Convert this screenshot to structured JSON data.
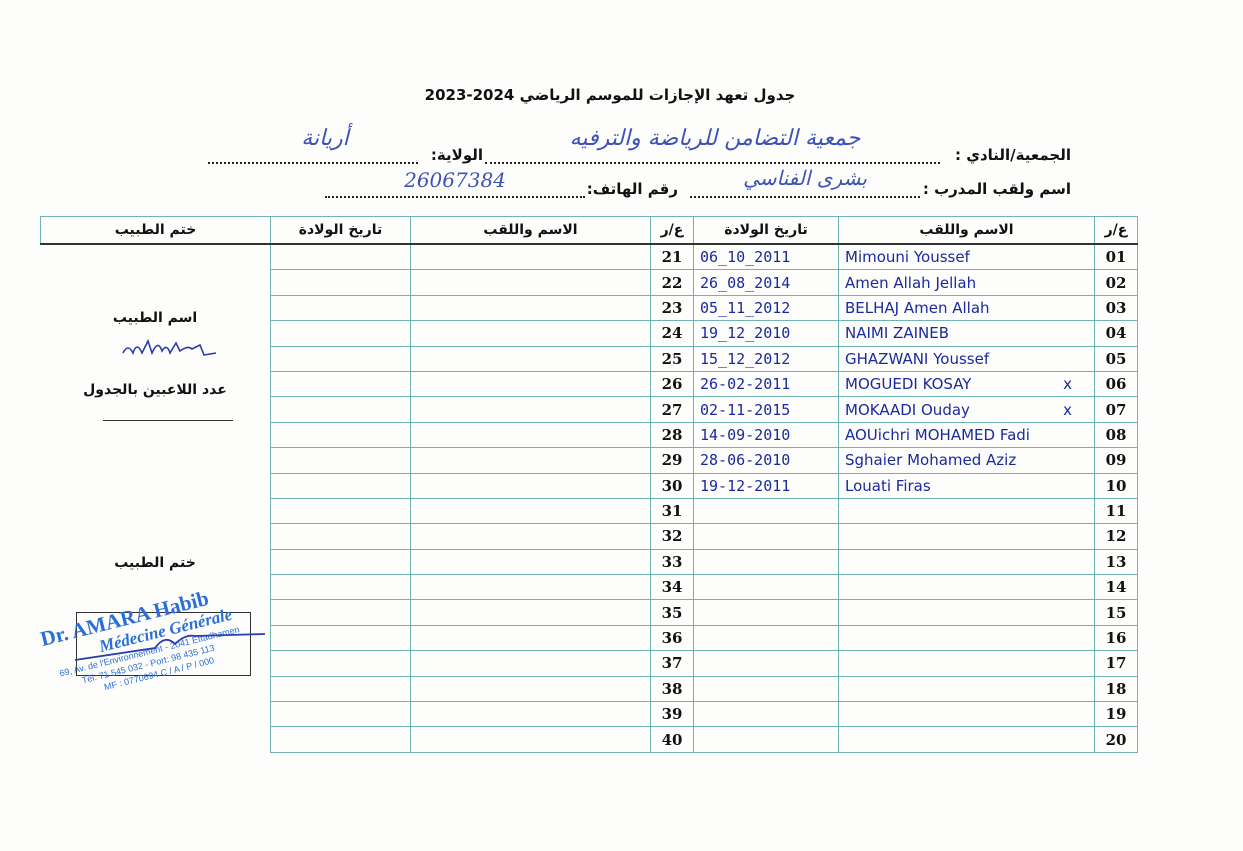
{
  "title": "جدول تعهد الإجازات للموسم الرياضي  2024-2023",
  "fields": {
    "club_label": "الجمعية/النادي :",
    "club_value": "جمعية التضامن للرياضة والترفيه",
    "state_label": "الولاية:",
    "state_value": "أريانة",
    "coach_label": "اسم ولقب المدرب :",
    "coach_value": "بشرى الفناسي",
    "phone_label": "رقم الهاتف:",
    "phone_value": "26067384"
  },
  "table": {
    "headers": {
      "num": "ع/ر",
      "name": "الاسم واللقب",
      "dob": "تاريخ الولادة",
      "stamp": "ختم الطبيب"
    },
    "left_rows": [
      {
        "num": "01",
        "name": "Mimouni Youssef",
        "dob": "06_10_2011",
        "mark": ""
      },
      {
        "num": "02",
        "name": "Amen Allah Jellah",
        "dob": "26_08_2014",
        "mark": ""
      },
      {
        "num": "03",
        "name": "BELHAJ Amen Allah",
        "dob": "05_11_2012",
        "mark": ""
      },
      {
        "num": "04",
        "name": "NAIMI ZAINEB",
        "dob": "19_12_2010",
        "mark": ""
      },
      {
        "num": "05",
        "name": "GHAZWANI Youssef",
        "dob": "15_12_2012",
        "mark": ""
      },
      {
        "num": "06",
        "name": "MOGUEDI KOSAY",
        "dob": "26-02-2011",
        "mark": "x"
      },
      {
        "num": "07",
        "name": "MOKAADI Ouday",
        "dob": "02-11-2015",
        "mark": "x"
      },
      {
        "num": "08",
        "name": "AOUichri MOHAMED Fadi",
        "dob": "14-09-2010",
        "mark": ""
      },
      {
        "num": "09",
        "name": "Sghaier Mohamed Aziz",
        "dob": "28-06-2010",
        "mark": ""
      },
      {
        "num": "10",
        "name": "Louati Firas",
        "dob": "19-12-2011",
        "mark": ""
      },
      {
        "num": "11",
        "name": "",
        "dob": "",
        "mark": ""
      },
      {
        "num": "12",
        "name": "",
        "dob": "",
        "mark": ""
      },
      {
        "num": "13",
        "name": "",
        "dob": "",
        "mark": ""
      },
      {
        "num": "14",
        "name": "",
        "dob": "",
        "mark": ""
      },
      {
        "num": "15",
        "name": "",
        "dob": "",
        "mark": ""
      },
      {
        "num": "16",
        "name": "",
        "dob": "",
        "mark": ""
      },
      {
        "num": "17",
        "name": "",
        "dob": "",
        "mark": ""
      },
      {
        "num": "18",
        "name": "",
        "dob": "",
        "mark": ""
      },
      {
        "num": "19",
        "name": "",
        "dob": "",
        "mark": ""
      },
      {
        "num": "20",
        "name": "",
        "dob": "",
        "mark": ""
      }
    ],
    "right_nums": [
      "21",
      "22",
      "23",
      "24",
      "25",
      "26",
      "27",
      "28",
      "29",
      "30",
      "31",
      "32",
      "33",
      "34",
      "35",
      "36",
      "37",
      "38",
      "39",
      "40"
    ]
  },
  "doctor": {
    "name_label": "اسم الطبيب",
    "count_label": "عدد اللاعبين بالجدول",
    "stamp_label": "ختم الطبيب"
  },
  "stamp": {
    "line1": "Dr. AMARA Habib",
    "line2": "Médecine Générale",
    "line3": "69, Av. de l'Environnement - 2041 Ettadhamen",
    "line4": "Tél: 71 545 032 - Port: 98 435 113",
    "line5": "MF : 0770694 C / A / P / 000"
  },
  "colors": {
    "ink": "#1a2a9e",
    "stamp": "#2b6fd6",
    "grid": "#6fb3b5"
  }
}
